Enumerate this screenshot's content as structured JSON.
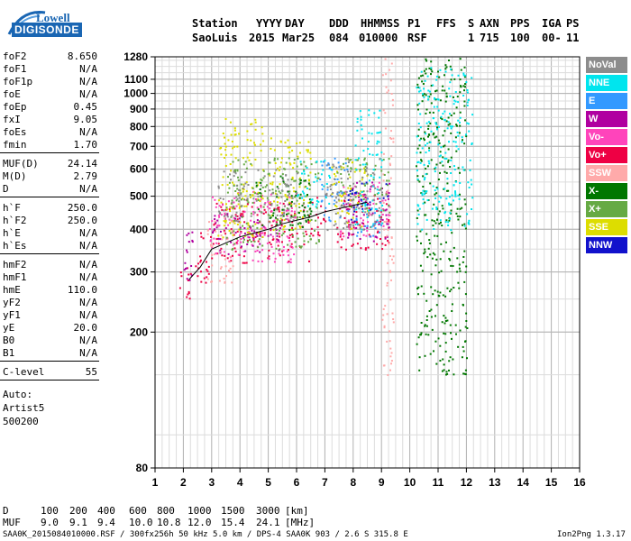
{
  "logo": {
    "line1": "Lowell",
    "line2": "DIGISONDE"
  },
  "header": {
    "labels": [
      "Station",
      "YYYY",
      "DAY",
      "DDD",
      "HHMMSS",
      "P1",
      "FFS",
      "S",
      "AXN",
      "PPS",
      "IGA",
      "PS"
    ],
    "values": [
      "SaoLuis",
      "2015",
      "Mar25",
      "084",
      "010000",
      "RSF",
      "1",
      "715",
      "100",
      "00-",
      "11"
    ]
  },
  "params_group1": [
    {
      "k": "foF2",
      "v": "8.650"
    },
    {
      "k": "foF1",
      "v": "N/A"
    },
    {
      "k": "foF1p",
      "v": "N/A"
    },
    {
      "k": "foE",
      "v": "N/A"
    },
    {
      "k": "foEp",
      "v": "0.45"
    },
    {
      "k": "fxI",
      "v": "9.05"
    },
    {
      "k": "foEs",
      "v": "N/A"
    },
    {
      "k": "fmin",
      "v": "1.70"
    }
  ],
  "params_group2": [
    {
      "k": "MUF(D)",
      "v": "24.14"
    },
    {
      "k": "M(D)",
      "v": "2.79"
    },
    {
      "k": "D",
      "v": "N/A"
    }
  ],
  "params_group3": [
    {
      "k": "h`F",
      "v": "250.0"
    },
    {
      "k": "h`F2",
      "v": "250.0"
    },
    {
      "k": "h`E",
      "v": "N/A"
    },
    {
      "k": "h`Es",
      "v": "N/A"
    }
  ],
  "params_group4": [
    {
      "k": "hmF2",
      "v": "N/A"
    },
    {
      "k": "hmF1",
      "v": "N/A"
    },
    {
      "k": "hmE",
      "v": "110.0"
    },
    {
      "k": "yF2",
      "v": "N/A"
    },
    {
      "k": "yF1",
      "v": "N/A"
    },
    {
      "k": "yE",
      "v": "20.0"
    },
    {
      "k": "B0",
      "v": "N/A"
    },
    {
      "k": "B1",
      "v": "N/A"
    }
  ],
  "params_group5": [
    {
      "k": "C-level",
      "v": "55"
    }
  ],
  "auto": [
    "Auto:",
    "Artist5",
    "500200"
  ],
  "legend": [
    {
      "label": "NoVal",
      "color": "#8c8c8c"
    },
    {
      "label": "NNE",
      "color": "#00e5ee"
    },
    {
      "label": "E",
      "color": "#3399ff"
    },
    {
      "label": "W",
      "color": "#b000a0"
    },
    {
      "label": "Vo-",
      "color": "#ff44bb"
    },
    {
      "label": "Vo+",
      "color": "#ee0044"
    },
    {
      "label": "SSW",
      "color": "#ffaaaa"
    },
    {
      "label": "X-",
      "color": "#007700"
    },
    {
      "label": "X+",
      "color": "#66aa44"
    },
    {
      "label": "SSE",
      "color": "#dddd00"
    },
    {
      "label": "NNW",
      "color": "#1111cc"
    }
  ],
  "muf_table": {
    "d_label": "D",
    "d_values": [
      "100",
      "200",
      "400",
      "600",
      "800",
      "1000",
      "1500",
      "3000"
    ],
    "d_unit": "[km]",
    "muf_label": "MUF",
    "muf_values": [
      "9.0",
      "9.1",
      "9.4",
      "10.0",
      "10.8",
      "12.0",
      "15.4",
      "24.1"
    ],
    "muf_unit": "[MHz]"
  },
  "footer": {
    "left": "SAA0K_2015084010000.RSF / 300fx256h 50 kHz 5.0 km / DPS-4 SAA0K 903 / 2.6 S 315.8 E",
    "right": "Ion2Png 1.3.17"
  },
  "chart_data": {
    "type": "scatter",
    "title": "",
    "xlabel": "",
    "ylabel": "",
    "xlim": [
      1,
      16
    ],
    "ylim": [
      80,
      1280
    ],
    "yscale": "log",
    "x_ticks": [
      1,
      2,
      3,
      4,
      5,
      6,
      7,
      8,
      9,
      10,
      11,
      12,
      13,
      14,
      15,
      16
    ],
    "y_ticks": [
      80,
      200,
      300,
      400,
      500,
      600,
      700,
      800,
      900,
      1000,
      1100,
      1280
    ],
    "grid": true,
    "legend_position": "right",
    "trace": {
      "name": "",
      "x": [
        2.2,
        2.6,
        3.0,
        3.5,
        4.0,
        4.5,
        5.0,
        5.5,
        6.0,
        6.5,
        7.0,
        7.5,
        8.0,
        8.5
      ],
      "y": [
        285,
        310,
        350,
        365,
        380,
        390,
        400,
        415,
        425,
        435,
        450,
        460,
        470,
        480
      ]
    },
    "series": [
      {
        "name": "Vo+",
        "regions": [
          [
            1.8,
            2.3,
            240,
            310
          ],
          [
            2.3,
            3.0,
            280,
            400
          ],
          [
            3.0,
            6.5,
            320,
            480
          ],
          [
            6.2,
            7.0,
            380,
            500
          ],
          [
            7.4,
            9.3,
            350,
            520
          ]
        ]
      },
      {
        "name": "Vo-",
        "regions": [
          [
            2.9,
            6.0,
            320,
            520
          ],
          [
            7.5,
            9.3,
            380,
            560
          ]
        ]
      },
      {
        "name": "W",
        "regions": [
          [
            1.8,
            2.3,
            280,
            400
          ],
          [
            3.0,
            5.5,
            340,
            450
          ],
          [
            7.7,
            9.3,
            370,
            560
          ]
        ]
      },
      {
        "name": "SSW",
        "regions": [
          [
            2.8,
            3.8,
            280,
            440
          ],
          [
            9.0,
            9.4,
            150,
            1280
          ]
        ]
      },
      {
        "name": "SSE",
        "regions": [
          [
            3.2,
            4.8,
            380,
            850
          ],
          [
            5.0,
            6.5,
            400,
            750
          ],
          [
            7.2,
            8.5,
            400,
            650
          ]
        ]
      },
      {
        "name": "X+",
        "regions": [
          [
            3.5,
            6.8,
            350,
            650
          ],
          [
            7.4,
            9.3,
            450,
            650
          ]
        ]
      },
      {
        "name": "X-",
        "regions": [
          [
            4.5,
            6.5,
            400,
            580
          ],
          [
            10.2,
            12.0,
            150,
            1280
          ]
        ]
      },
      {
        "name": "E",
        "regions": [
          [
            6.8,
            7.8,
            420,
            650
          ],
          [
            8.0,
            9.0,
            380,
            500
          ]
        ]
      },
      {
        "name": "NNE",
        "regions": [
          [
            6.0,
            7.2,
            460,
            640
          ],
          [
            8.0,
            9.0,
            400,
            900
          ],
          [
            10.2,
            12.2,
            400,
            1200
          ]
        ]
      },
      {
        "name": "NNW",
        "regions": [
          [
            7.8,
            8.6,
            420,
            560
          ],
          [
            9.0,
            9.2,
            480,
            560
          ]
        ]
      },
      {
        "name": "NoVal",
        "regions": [
          [
            3.2,
            6.0,
            420,
            600
          ],
          [
            7.0,
            9.0,
            400,
            650
          ]
        ]
      }
    ]
  }
}
